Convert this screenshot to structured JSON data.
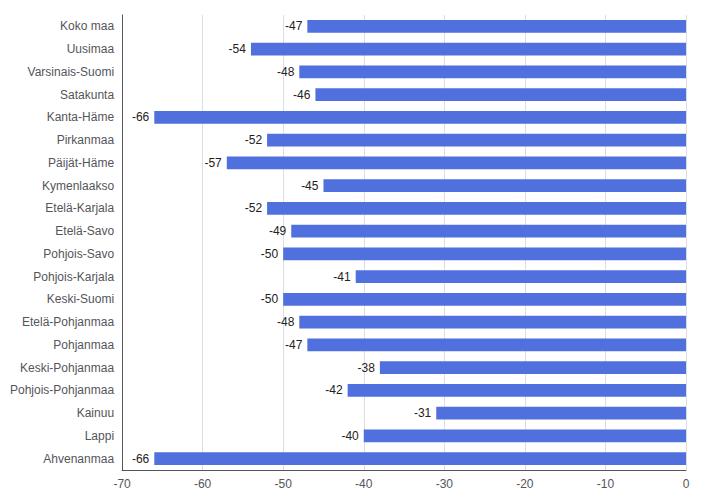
{
  "chart_data": {
    "type": "bar",
    "orientation": "horizontal",
    "categories": [
      "Koko maa",
      "Uusimaa",
      "Varsinais-Suomi",
      "Satakunta",
      "Kanta-Häme",
      "Pirkanmaa",
      "Päijät-Häme",
      "Kymenlaakso",
      "Etelä-Karjala",
      "Etelä-Savo",
      "Pohjois-Savo",
      "Pohjois-Karjala",
      "Keski-Suomi",
      "Etelä-Pohjanmaa",
      "Pohjanmaa",
      "Keski-Pohjanmaa",
      "Pohjois-Pohjanmaa",
      "Kainuu",
      "Lappi",
      "Ahvenanmaa"
    ],
    "values": [
      -47,
      -54,
      -48,
      -46,
      -66,
      -52,
      -57,
      -45,
      -52,
      -49,
      -50,
      -41,
      -50,
      -48,
      -47,
      -38,
      -42,
      -31,
      -40,
      -66
    ],
    "xlim": [
      -70,
      0
    ],
    "xticks": [
      -70,
      -60,
      -50,
      -40,
      -30,
      -20,
      -10,
      0
    ],
    "grid": true,
    "data_labels": true
  }
}
